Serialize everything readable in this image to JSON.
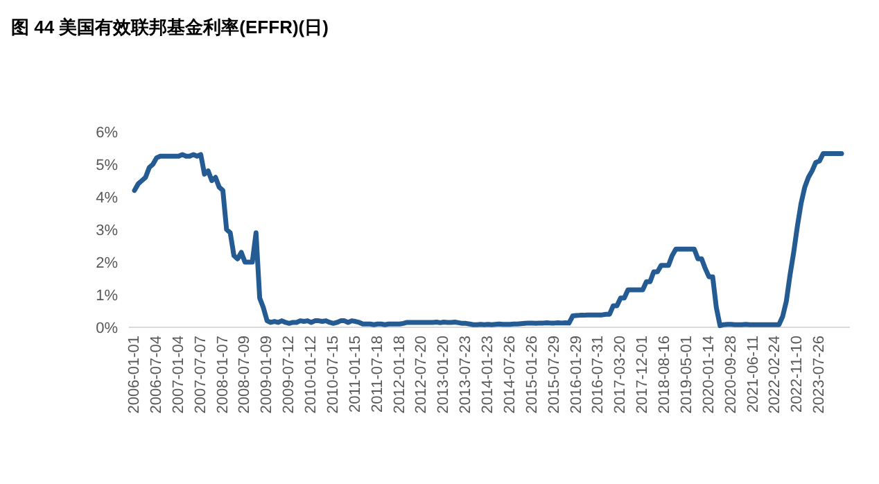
{
  "chart_data": {
    "type": "line",
    "title": "图 44 美国有效联邦基金利率(EFFR)(日)",
    "categories": [
      "2006-01-01",
      null,
      null,
      null,
      null,
      null,
      "2006-07-04",
      null,
      null,
      null,
      null,
      null,
      "2007-01-04",
      null,
      null,
      null,
      null,
      null,
      "2007-07-07",
      null,
      null,
      null,
      null,
      null,
      "2008-01-07",
      null,
      null,
      null,
      null,
      null,
      "2008-07-09",
      null,
      null,
      null,
      null,
      null,
      "2009-01-09",
      null,
      null,
      null,
      null,
      null,
      "2009-07-12",
      null,
      null,
      null,
      null,
      null,
      "2010-01-12",
      null,
      null,
      null,
      null,
      null,
      "2010-07-15",
      null,
      null,
      null,
      null,
      null,
      "2011-01-15",
      null,
      null,
      null,
      null,
      null,
      "2011-07-18",
      null,
      null,
      null,
      null,
      null,
      "2012-01-18",
      null,
      null,
      null,
      null,
      null,
      "2012-07-20",
      null,
      null,
      null,
      null,
      null,
      "2013-01-20",
      null,
      null,
      null,
      null,
      null,
      "2013-07-23",
      null,
      null,
      null,
      null,
      null,
      "2014-01-23",
      null,
      null,
      null,
      null,
      null,
      "2014-07-26",
      null,
      null,
      null,
      null,
      null,
      "2015-01-26",
      null,
      null,
      null,
      null,
      null,
      "2015-07-29",
      null,
      null,
      null,
      null,
      null,
      "2016-01-29",
      null,
      null,
      null,
      null,
      null,
      "2016-07-31",
      null,
      null,
      null,
      null,
      null,
      "2017-03-20",
      null,
      null,
      null,
      null,
      null,
      "2017-12-01",
      null,
      null,
      null,
      null,
      null,
      "2018-08-16",
      null,
      null,
      null,
      null,
      null,
      "2019-05-01",
      null,
      null,
      null,
      null,
      null,
      "2020-01-14",
      null,
      null,
      null,
      null,
      null,
      "2020-09-28",
      null,
      null,
      null,
      null,
      null,
      "2021-06-11",
      null,
      null,
      null,
      null,
      null,
      "2022-02-24",
      null,
      null,
      null,
      null,
      null,
      "2022-11-10",
      null,
      null,
      null,
      null,
      null,
      "2023-07-26",
      null,
      null,
      null,
      null,
      null,
      null
    ],
    "series": [
      {
        "color": "#245b92",
        "values": [
          4.2,
          4.4,
          4.5,
          4.6,
          4.9,
          5.0,
          5.2,
          5.25,
          5.25,
          5.25,
          5.25,
          5.25,
          5.25,
          5.3,
          5.25,
          5.25,
          5.3,
          5.25,
          5.3,
          4.7,
          4.8,
          4.5,
          4.6,
          4.3,
          4.2,
          3.0,
          2.9,
          2.2,
          2.1,
          2.3,
          2.0,
          2.0,
          2.0,
          2.9,
          0.9,
          0.6,
          0.2,
          0.15,
          0.18,
          0.15,
          0.2,
          0.15,
          0.12,
          0.15,
          0.15,
          0.2,
          0.18,
          0.2,
          0.15,
          0.2,
          0.2,
          0.18,
          0.2,
          0.15,
          0.12,
          0.15,
          0.2,
          0.2,
          0.15,
          0.2,
          0.18,
          0.15,
          0.1,
          0.1,
          0.1,
          0.08,
          0.1,
          0.1,
          0.08,
          0.1,
          0.1,
          0.1,
          0.1,
          0.12,
          0.15,
          0.15,
          0.15,
          0.15,
          0.15,
          0.15,
          0.15,
          0.15,
          0.16,
          0.14,
          0.16,
          0.15,
          0.15,
          0.16,
          0.14,
          0.12,
          0.12,
          0.1,
          0.08,
          0.08,
          0.09,
          0.08,
          0.09,
          0.08,
          0.09,
          0.1,
          0.09,
          0.09,
          0.09,
          0.1,
          0.1,
          0.11,
          0.12,
          0.13,
          0.13,
          0.12,
          0.13,
          0.13,
          0.14,
          0.13,
          0.13,
          0.14,
          0.13,
          0.14,
          0.13,
          0.35,
          0.36,
          0.37,
          0.37,
          0.38,
          0.38,
          0.38,
          0.38,
          0.38,
          0.4,
          0.4,
          0.66,
          0.66,
          0.9,
          0.9,
          1.15,
          1.15,
          1.15,
          1.15,
          1.15,
          1.4,
          1.4,
          1.7,
          1.7,
          1.9,
          1.9,
          1.9,
          2.2,
          2.4,
          2.4,
          2.4,
          2.4,
          2.4,
          2.4,
          2.1,
          2.1,
          1.8,
          1.55,
          1.55,
          0.6,
          0.05,
          0.08,
          0.09,
          0.09,
          0.08,
          0.08,
          0.08,
          0.09,
          0.08,
          0.08,
          0.08,
          0.08,
          0.08,
          0.08,
          0.08,
          0.08,
          0.08,
          0.33,
          0.8,
          1.6,
          2.3,
          3.1,
          3.8,
          4.3,
          4.6,
          4.8,
          5.06,
          5.1,
          5.33,
          5.33,
          5.33,
          5.33,
          5.33,
          5.33
        ]
      }
    ],
    "ylim": [
      0,
      6
    ],
    "yticks": [
      {
        "value": 0,
        "label": "0%"
      },
      {
        "value": 1,
        "label": "1%"
      },
      {
        "value": 2,
        "label": "2%"
      },
      {
        "value": 3,
        "label": "3%"
      },
      {
        "value": 4,
        "label": "4%"
      },
      {
        "value": 5,
        "label": "5%"
      },
      {
        "value": 6,
        "label": "6%"
      }
    ]
  }
}
